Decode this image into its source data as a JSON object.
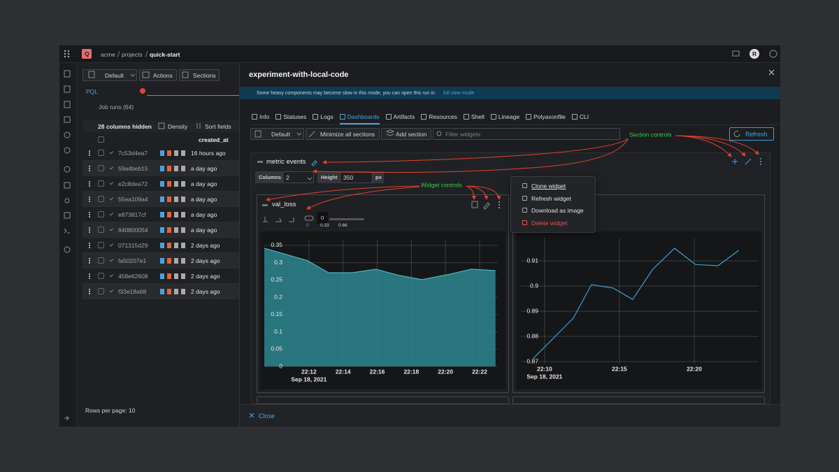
{
  "topbar": {
    "project_badge": "Q",
    "breadcrumb": [
      "acme",
      "projects",
      "quick-start"
    ],
    "user_avatar": "R"
  },
  "runs_panel": {
    "toolbar": [
      "Default",
      "Actions",
      "Sections"
    ],
    "query_mode": "PQL",
    "count_label": "Job runs (64)",
    "table_toolbar": [
      "28 columns hidden",
      "Density",
      "Sort fields"
    ],
    "column_header": "created_at",
    "rows": [
      [
        "7c53d4ea7",
        "16 hours ago"
      ],
      [
        "59a4beb15",
        "a day ago"
      ],
      [
        "e2c8dea72",
        "a day ago"
      ],
      [
        "55ea109a4",
        "a day ago"
      ],
      [
        "e873817cf",
        "a day ago"
      ],
      [
        "840800054",
        "a day ago"
      ],
      [
        "071315d29",
        "2 days ago"
      ],
      [
        "fa50207e1",
        "2 days ago"
      ],
      [
        "458e62608",
        "2 days ago"
      ],
      [
        "f33e18a68",
        "2 days ago"
      ]
    ],
    "pagination": "Rows per page: 10"
  },
  "drawer": {
    "title": "experiment-with-local-code",
    "banner": {
      "text": "Some heavy components may become slow in this mode, you can open this run in",
      "link": "full view mode"
    },
    "tabs": [
      "Info",
      "Statuses",
      "Logs",
      "Dashboards",
      "Artifacts",
      "Resources",
      "Shell",
      "Lineage",
      "Polyaxonfile",
      "CLI"
    ],
    "toolbar": {
      "view": "Default",
      "buttons": [
        "Minimize all sections",
        "Add section"
      ],
      "filter_placeholder": "Filter widgets",
      "refresh": "Refresh"
    },
    "annotations": [
      "Section controls",
      "Widget controls"
    ],
    "section": {
      "title": "metric events",
      "columns_label": "Columns",
      "columns_value": "2",
      "height_label": "Height",
      "height_value": "350",
      "height_unit": "px"
    },
    "widget": {
      "title": "val_loss",
      "smoothing_value": "0",
      "slider_labels": [
        "0",
        "0.33",
        "0.66"
      ]
    },
    "widget_menu": [
      "Clone widget",
      "Refresh widget",
      "Download as image",
      "Delete widget"
    ],
    "close": "Close"
  },
  "chart_data": [
    {
      "type": "area",
      "color": "#4fb0ba",
      "fill": "#2b8690",
      "grid": true,
      "date_label": "Sep 18, 2021",
      "x": [
        "2021-09-18T22:09:23",
        "2021-09-18T22:11:55",
        "2021-09-18T22:13:09",
        "2021-09-18T22:14:32",
        "2021-09-18T22:15:55",
        "2021-09-18T22:17:18",
        "2021-09-18T22:18:37",
        "2021-09-18T22:20:05",
        "2021-09-18T22:21:31",
        "2021-09-18T22:22:56"
      ],
      "values": [
        0.342,
        0.306,
        0.271,
        0.271,
        0.281,
        0.263,
        0.251,
        0.265,
        0.281,
        0.277
      ],
      "xlim": [
        "2021-09-18T22:09:23",
        "2021-09-18T22:23:04"
      ],
      "ylim": [
        0,
        0.366
      ],
      "xticks": [
        {
          "value": "2021-09-18T22:12",
          "label": "22:12"
        },
        {
          "value": "2021-09-18T22:14",
          "label": "22:14"
        },
        {
          "value": "2021-09-18T22:16",
          "label": "22:16"
        },
        {
          "value": "2021-09-18T22:18",
          "label": "22:18"
        },
        {
          "value": "2021-09-18T22:20",
          "label": "22:20"
        },
        {
          "value": "2021-09-18T22:22",
          "label": "22:22"
        }
      ],
      "yticks": [
        0,
        0.05,
        0.1,
        0.15,
        0.2,
        0.25,
        0.3,
        0.35
      ]
    },
    {
      "type": "line",
      "color": "#3a9fd6",
      "grid": true,
      "date_label": "Sep 18, 2021",
      "x": [
        "2021-09-18T22:09:13",
        "2021-09-18T22:11:55",
        "2021-09-18T22:13:08",
        "2021-09-18T22:14:35",
        "2021-09-18T22:15:53",
        "2021-09-18T22:17:14",
        "2021-09-18T22:18:41",
        "2021-09-18T22:20:05",
        "2021-09-18T22:21:35",
        "2021-09-18T22:22:59"
      ],
      "values": [
        0.8711,
        0.8872,
        0.9006,
        0.8992,
        0.8947,
        0.9067,
        0.915,
        0.9086,
        0.9081,
        0.9142
      ],
      "xlim": [
        "2021-09-18T22:08:25",
        "2021-09-18T22:24:18"
      ],
      "ylim": [
        0.8692,
        0.9192
      ],
      "xticks": [
        {
          "value": "2021-09-18T22:10",
          "label": "22:10"
        },
        {
          "value": "2021-09-18T22:15",
          "label": "22:15"
        },
        {
          "value": "2021-09-18T22:20",
          "label": "22:20"
        }
      ],
      "yticks": [
        0.87,
        0.88,
        0.89,
        0.9,
        0.91
      ]
    }
  ]
}
